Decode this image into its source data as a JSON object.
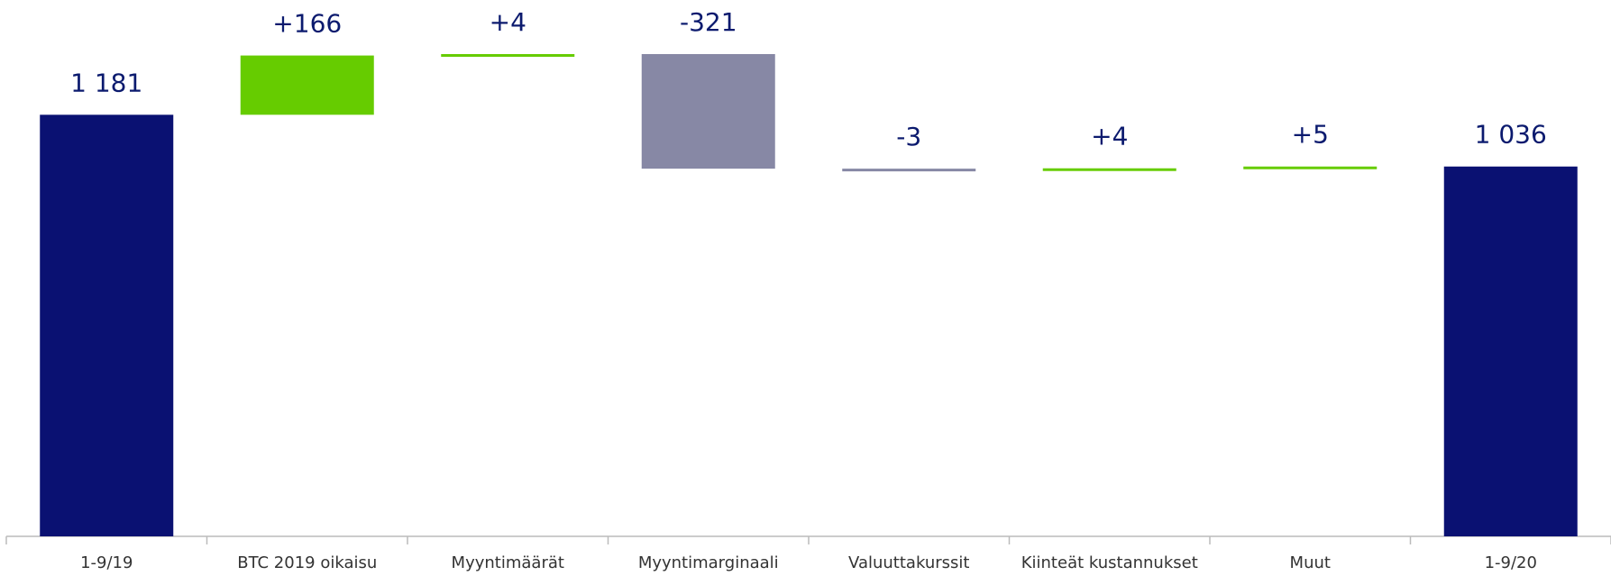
{
  "chart_data": {
    "type": "waterfall",
    "categories": [
      "1-9/19",
      "BTC 2019 oikaisu",
      "Myyntimäärät",
      "Myyntimarginaali",
      "Valuuttakurssit",
      "Kiinteät kustannukset",
      "Muut",
      "1-9/20"
    ],
    "values": [
      1181,
      166,
      4,
      -321,
      -3,
      4,
      5,
      1036
    ],
    "value_labels": [
      "1 181",
      "+166",
      "+4",
      "-321",
      "-3",
      "+4",
      "+5",
      "1 036"
    ],
    "total_color": "#0a1172",
    "increase_color": "#66cc00",
    "decrease_color": "#8788a5"
  }
}
